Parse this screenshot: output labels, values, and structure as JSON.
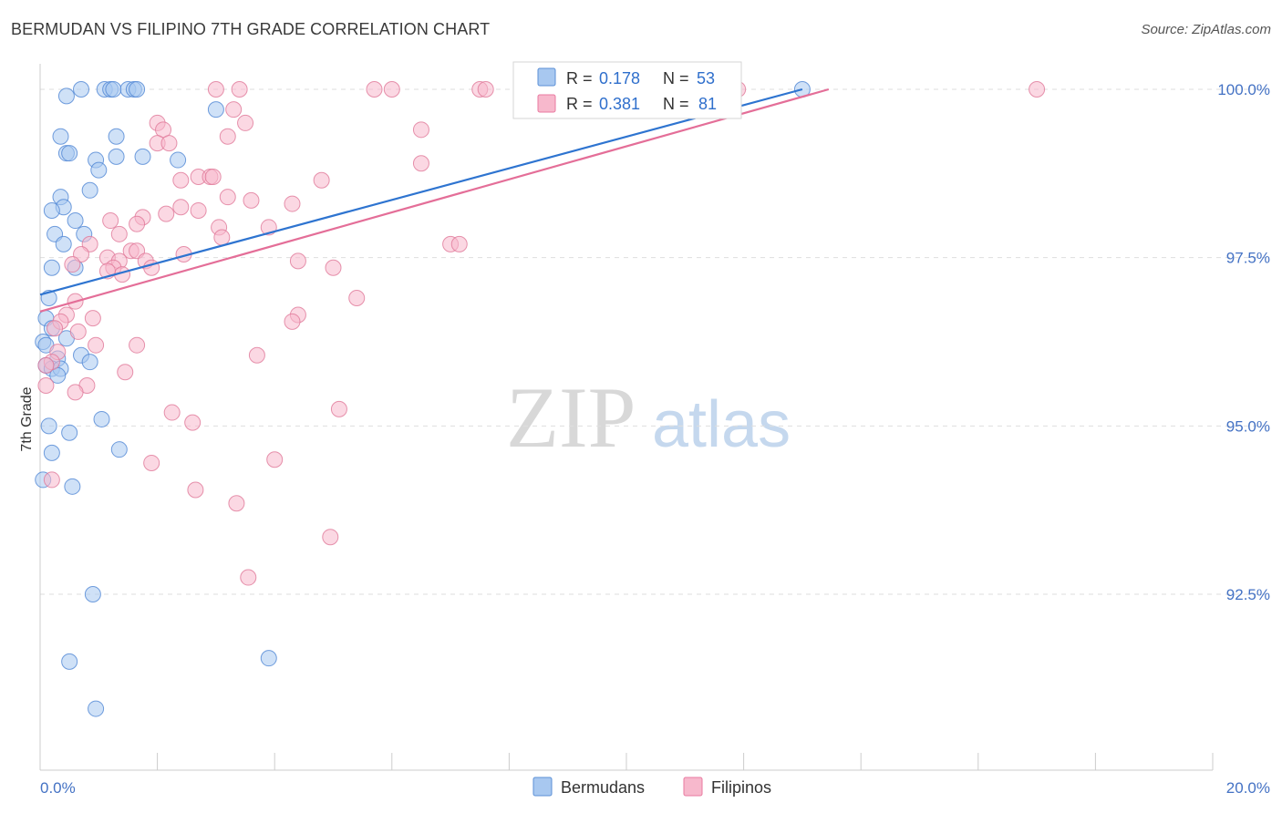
{
  "header": {
    "title": "BERMUDAN VS FILIPINO 7TH GRADE CORRELATION CHART",
    "source": "Source: ZipAtlas.com"
  },
  "watermark": {
    "zip": "ZIP",
    "atlas": "atlas"
  },
  "chart_data": {
    "type": "scatter",
    "title": "BERMUDAN VS FILIPINO 7TH GRADE CORRELATION CHART",
    "xlabel": "",
    "ylabel": "7th Grade",
    "xlim": [
      0.0,
      20.0
    ],
    "ylim": [
      90.2,
      100.5
    ],
    "x_tick_labels": [
      "0.0%",
      "20.0%"
    ],
    "y_ticks": [
      {
        "value": 100.0,
        "label": "100.0%"
      },
      {
        "value": 97.5,
        "label": "97.5%"
      },
      {
        "value": 95.0,
        "label": "95.0%"
      },
      {
        "value": 92.5,
        "label": "92.5%"
      }
    ],
    "legend": {
      "position": "top-center",
      "rows": [
        {
          "r_label": "R =",
          "r": "0.178",
          "n_label": "N =",
          "n": "53",
          "color": "#a8c8f0",
          "stroke": "#5b8fd6"
        },
        {
          "r_label": "R =",
          "r": "0.381",
          "n_label": "N =",
          "n": "81",
          "color": "#f7b8cc",
          "stroke": "#e87aa0"
        }
      ]
    },
    "series": [
      {
        "name": "Bermudans",
        "color": "#a8c8f0",
        "stroke": "#4f86d4",
        "line_color": "#2e74d0",
        "trend": {
          "x0": 0.0,
          "y0": 96.95,
          "x1": 13.0,
          "y1": 100.0
        },
        "points": [
          [
            0.7,
            100.0
          ],
          [
            1.1,
            100.0
          ],
          [
            1.2,
            100.0
          ],
          [
            1.25,
            100.0
          ],
          [
            1.5,
            100.0
          ],
          [
            1.6,
            100.0
          ],
          [
            1.65,
            100.0
          ],
          [
            13.0,
            100.0
          ],
          [
            0.45,
            99.9
          ],
          [
            3.0,
            99.7
          ],
          [
            0.35,
            99.3
          ],
          [
            1.3,
            99.3
          ],
          [
            0.45,
            99.05
          ],
          [
            0.5,
            99.05
          ],
          [
            1.75,
            99.0
          ],
          [
            1.3,
            99.0
          ],
          [
            0.95,
            98.95
          ],
          [
            2.35,
            98.95
          ],
          [
            1.0,
            98.8
          ],
          [
            0.85,
            98.5
          ],
          [
            0.35,
            98.4
          ],
          [
            0.4,
            98.25
          ],
          [
            0.2,
            98.2
          ],
          [
            0.6,
            98.05
          ],
          [
            0.25,
            97.85
          ],
          [
            0.75,
            97.85
          ],
          [
            0.4,
            97.7
          ],
          [
            0.2,
            97.35
          ],
          [
            0.6,
            97.35
          ],
          [
            0.15,
            96.9
          ],
          [
            0.1,
            96.6
          ],
          [
            0.2,
            96.45
          ],
          [
            0.45,
            96.3
          ],
          [
            0.05,
            96.25
          ],
          [
            0.1,
            96.2
          ],
          [
            0.3,
            96.0
          ],
          [
            0.7,
            96.05
          ],
          [
            0.85,
            95.95
          ],
          [
            0.1,
            95.9
          ],
          [
            0.2,
            95.85
          ],
          [
            0.35,
            95.85
          ],
          [
            0.3,
            95.75
          ],
          [
            1.05,
            95.1
          ],
          [
            0.5,
            94.9
          ],
          [
            1.35,
            94.65
          ],
          [
            0.2,
            94.6
          ],
          [
            0.05,
            94.2
          ],
          [
            0.55,
            94.1
          ],
          [
            0.9,
            92.5
          ],
          [
            3.9,
            91.55
          ],
          [
            0.5,
            91.5
          ],
          [
            0.95,
            90.8
          ],
          [
            0.15,
            95.0
          ]
        ]
      },
      {
        "name": "Filipinos",
        "color": "#f7b8cc",
        "stroke": "#e07898",
        "line_color": "#e46e98",
        "trend": {
          "x0": 0.0,
          "y0": 96.7,
          "x1": 13.45,
          "y1": 100.0
        },
        "points": [
          [
            3.0,
            100.0
          ],
          [
            3.4,
            100.0
          ],
          [
            5.7,
            100.0
          ],
          [
            6.0,
            100.0
          ],
          [
            7.5,
            100.0
          ],
          [
            7.6,
            100.0
          ],
          [
            11.9,
            100.0
          ],
          [
            17.0,
            100.0
          ],
          [
            3.3,
            99.7
          ],
          [
            2.0,
            99.5
          ],
          [
            3.5,
            99.5
          ],
          [
            2.1,
            99.4
          ],
          [
            6.5,
            99.4
          ],
          [
            3.2,
            99.3
          ],
          [
            2.0,
            99.2
          ],
          [
            2.2,
            99.2
          ],
          [
            6.5,
            98.9
          ],
          [
            2.7,
            98.7
          ],
          [
            2.9,
            98.7
          ],
          [
            2.95,
            98.7
          ],
          [
            2.4,
            98.65
          ],
          [
            4.8,
            98.65
          ],
          [
            3.2,
            98.4
          ],
          [
            3.6,
            98.35
          ],
          [
            4.3,
            98.3
          ],
          [
            2.4,
            98.25
          ],
          [
            2.7,
            98.2
          ],
          [
            2.15,
            98.15
          ],
          [
            1.75,
            98.1
          ],
          [
            1.2,
            98.05
          ],
          [
            1.65,
            98.0
          ],
          [
            3.05,
            97.95
          ],
          [
            3.9,
            97.95
          ],
          [
            1.35,
            97.85
          ],
          [
            3.1,
            97.8
          ],
          [
            0.85,
            97.7
          ],
          [
            7.0,
            97.7
          ],
          [
            7.15,
            97.7
          ],
          [
            1.55,
            97.6
          ],
          [
            1.65,
            97.6
          ],
          [
            0.7,
            97.55
          ],
          [
            2.45,
            97.55
          ],
          [
            1.15,
            97.5
          ],
          [
            1.35,
            97.45
          ],
          [
            1.8,
            97.45
          ],
          [
            4.4,
            97.45
          ],
          [
            1.9,
            97.35
          ],
          [
            1.25,
            97.35
          ],
          [
            0.55,
            97.4
          ],
          [
            5.0,
            97.35
          ],
          [
            1.4,
            97.25
          ],
          [
            1.15,
            97.3
          ],
          [
            5.4,
            96.9
          ],
          [
            0.6,
            96.85
          ],
          [
            0.45,
            96.65
          ],
          [
            0.9,
            96.6
          ],
          [
            4.4,
            96.65
          ],
          [
            0.35,
            96.55
          ],
          [
            4.3,
            96.55
          ],
          [
            0.25,
            96.45
          ],
          [
            0.65,
            96.4
          ],
          [
            1.65,
            96.2
          ],
          [
            0.95,
            96.2
          ],
          [
            0.3,
            96.1
          ],
          [
            3.7,
            96.05
          ],
          [
            0.2,
            95.95
          ],
          [
            0.1,
            95.9
          ],
          [
            1.45,
            95.8
          ],
          [
            0.8,
            95.6
          ],
          [
            0.1,
            95.6
          ],
          [
            5.1,
            95.25
          ],
          [
            2.25,
            95.2
          ],
          [
            2.6,
            95.05
          ],
          [
            4.0,
            94.5
          ],
          [
            1.9,
            94.45
          ],
          [
            2.65,
            94.05
          ],
          [
            3.35,
            93.85
          ],
          [
            0.2,
            94.2
          ],
          [
            4.95,
            93.35
          ],
          [
            3.55,
            92.75
          ],
          [
            0.6,
            95.5
          ]
        ]
      }
    ]
  },
  "bottom_legend": {
    "items": [
      {
        "label": "Bermudans",
        "color": "#a8c8f0",
        "stroke": "#5b8fd6"
      },
      {
        "label": "Filipinos",
        "color": "#f7b8cc",
        "stroke": "#e87aa0"
      }
    ]
  }
}
